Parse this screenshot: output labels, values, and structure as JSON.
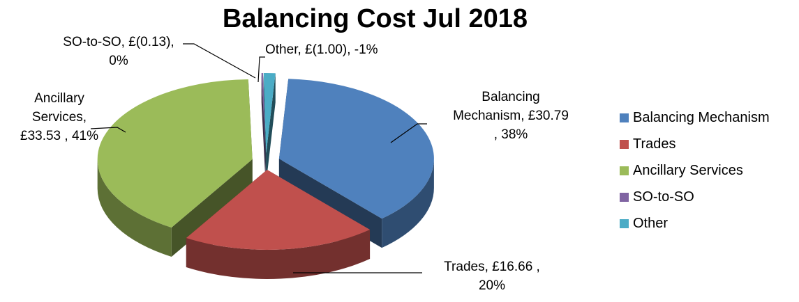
{
  "chart_data": {
    "type": "pie",
    "title": "Balancing Cost Jul 2018",
    "slices": [
      {
        "name": "Balancing Mechanism",
        "value": 30.79,
        "label": "Balancing\nMechanism,  £30.79\n, 38%",
        "color": "#4f81bd"
      },
      {
        "name": "Trades",
        "value": 16.66,
        "label": "Trades,  £16.66 ,\n20%",
        "color": "#c0504d"
      },
      {
        "name": "Ancillary Services",
        "value": 33.53,
        "label": "Ancillary\nServices,\n£33.53 , 41%",
        "color": "#9bbb59"
      },
      {
        "name": "SO-to-SO",
        "value": -0.13,
        "label": "SO-to-SO,  £(0.13),\n0%",
        "color": "#8064a2"
      },
      {
        "name": "Other",
        "value": -1.0,
        "label": "Other,  £(1.00), -1%",
        "color": "#4bacc6"
      }
    ],
    "legend_position": "right"
  }
}
